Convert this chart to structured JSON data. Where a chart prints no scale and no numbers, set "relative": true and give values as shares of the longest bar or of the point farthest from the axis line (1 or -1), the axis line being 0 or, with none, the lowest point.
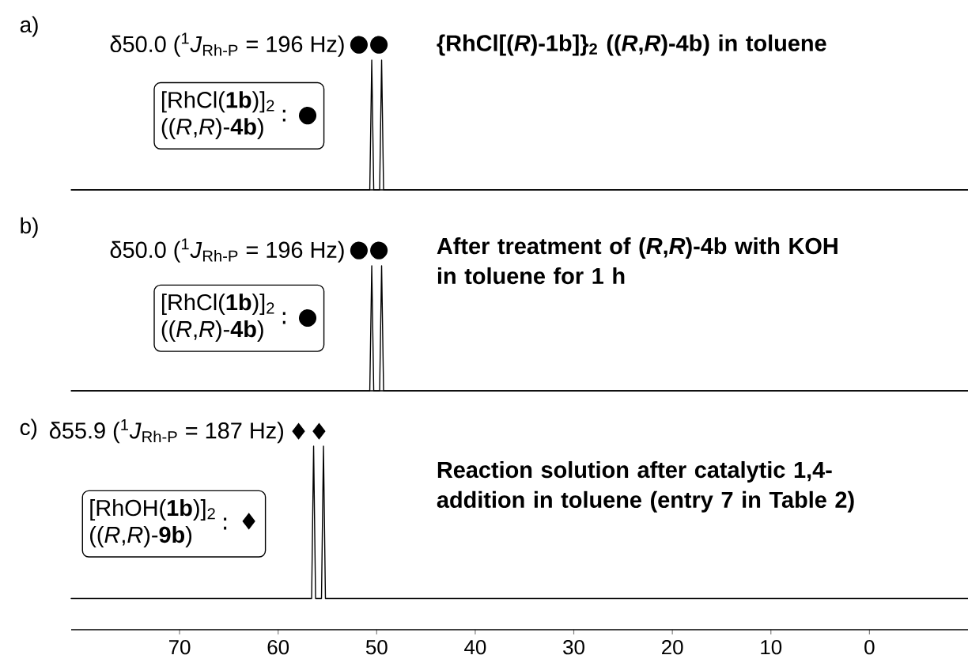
{
  "chart_data": [
    {
      "type": "line",
      "relative": true,
      "color": "#000000",
      "xlim": [
        81,
        -10
      ],
      "tick_labels": false,
      "x": [
        81,
        50.7,
        50.5,
        50.3,
        50.0,
        49.7,
        49.5,
        49.3,
        -10
      ],
      "values": [
        0,
        0,
        1,
        0,
        0,
        0,
        1,
        0,
        0
      ],
      "title": "{RhCl[(*R*)-1b]}$_{2}$  ((*R*,*R*)-4b)  in toluene",
      "annotations": [
        "a)",
        "δ50.0 ($^{1}$*J*$_{Rh-P}$ = 196 Hz)",
        "●●",
        "[RhCl(**1b**)]$_{2}$",
        "((*R*,*R*)-**4b**)",
        ": ●"
      ]
    },
    {
      "type": "line",
      "relative": true,
      "color": "#000000",
      "xlim": [
        81,
        -10
      ],
      "tick_labels": false,
      "x": [
        81,
        50.7,
        50.5,
        50.3,
        50.0,
        49.7,
        49.5,
        49.3,
        -10
      ],
      "values": [
        0,
        0,
        1,
        0,
        0,
        0,
        1,
        0,
        0
      ],
      "title": "After treatment of (*R*,*R*)-4b with KOH in toluene for 1 h",
      "annotations": [
        "b)",
        "δ50.0 ($^{1}$*J*$_{Rh-P}$ = 196 Hz)",
        "●●",
        "[RhCl(**1b**)]$_{2}$",
        "((*R*,*R*)-**4b**)",
        ": ●"
      ]
    },
    {
      "type": "line",
      "relative": true,
      "color": "#000000",
      "xlim": [
        81,
        -10
      ],
      "tick_labels": "x",
      "xticks": [
        70,
        60,
        50,
        40,
        30,
        20,
        10,
        0
      ],
      "x": [
        81,
        56.6,
        56.4,
        56.2,
        55.9,
        55.6,
        55.4,
        55.2,
        -10
      ],
      "values": [
        0.17,
        0.17,
        1,
        0.17,
        0.17,
        0.17,
        1,
        0.17,
        0.17
      ],
      "title": "Reaction solution after catalytic 1,4-addition in toluene (entry 7 in Table 2)",
      "annotations": [
        "c)",
        "δ55.9 ($^{1}$*J*$_{Rh-P}$ = 187 Hz)",
        "♦♦",
        "[RhOH(**1b**)]$_{2}$",
        "((*R*,*R*)-**9b**)",
        ": ♦"
      ]
    }
  ]
}
